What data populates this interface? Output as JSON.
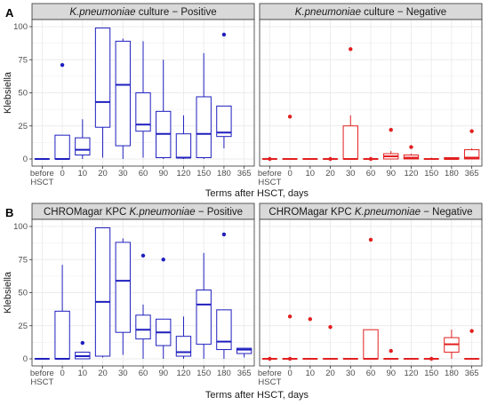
{
  "chart_data": [
    {
      "type": "box",
      "panel_label": "A",
      "ylabel": "Klebsiella",
      "xlabel": "Terms after HSCT, days",
      "ylim": [
        0,
        100
      ],
      "yticks": [
        0,
        25,
        50,
        75,
        100
      ],
      "categories": [
        "before HSCT",
        "0",
        "10",
        "20",
        "30",
        "60",
        "90",
        "120",
        "150",
        "180",
        "365"
      ],
      "category_labels": [
        [
          "before",
          "HSCT"
        ],
        [
          "0"
        ],
        [
          "10"
        ],
        [
          "20"
        ],
        [
          "30"
        ],
        [
          "60"
        ],
        [
          "90"
        ],
        [
          "120"
        ],
        [
          "150"
        ],
        [
          "180"
        ],
        [
          "365"
        ]
      ],
      "grid": true,
      "facets": [
        {
          "title_italic": "K.pneumoniae",
          "title_rest": " culture − Positive",
          "color": "#1f1fbf",
          "categories": [
            "before HSCT",
            "0",
            "10",
            "20",
            "30",
            "60",
            "90",
            "120",
            "150",
            "180"
          ],
          "boxes": [
            {
              "min": 0,
              "q1": 0,
              "median": 0,
              "q3": 0,
              "max": 0,
              "outliers": []
            },
            {
              "min": 0,
              "q1": 0,
              "median": 0,
              "q3": 18,
              "max": 18,
              "outliers": [
                71
              ]
            },
            {
              "min": 0,
              "q1": 3,
              "median": 7,
              "q3": 16,
              "max": 30,
              "outliers": []
            },
            {
              "min": 1,
              "q1": 24,
              "median": 43,
              "q3": 99,
              "max": 99,
              "outliers": []
            },
            {
              "min": 0,
              "q1": 10,
              "median": 56,
              "q3": 89,
              "max": 91,
              "outliers": []
            },
            {
              "min": 1,
              "q1": 21,
              "median": 26,
              "q3": 50,
              "max": 89,
              "outliers": []
            },
            {
              "min": 0,
              "q1": 1,
              "median": 19,
              "q3": 36,
              "max": 75,
              "outliers": []
            },
            {
              "min": 0,
              "q1": 1,
              "median": 1,
              "q3": 19,
              "max": 33,
              "outliers": []
            },
            {
              "min": 0,
              "q1": 1,
              "median": 19,
              "q3": 47,
              "max": 80,
              "outliers": []
            },
            {
              "min": 8,
              "q1": 17,
              "median": 20,
              "q3": 40,
              "max": 40,
              "outliers": [
                94
              ]
            }
          ]
        },
        {
          "title_italic": "K.pneumoniae",
          "title_rest": " culture − Negative",
          "color": "#e21f1f",
          "categories": [
            "before HSCT",
            "0",
            "10",
            "20",
            "30",
            "60",
            "90",
            "120",
            "150",
            "180",
            "365"
          ],
          "boxes": [
            {
              "min": 0,
              "q1": 0,
              "median": 0,
              "q3": 0,
              "max": 0,
              "outliers": [
                0
              ]
            },
            {
              "min": 0,
              "q1": 0,
              "median": 0,
              "q3": 0,
              "max": 0,
              "outliers": [
                32
              ]
            },
            {
              "min": 0,
              "q1": 0,
              "median": 0,
              "q3": 0,
              "max": 0,
              "outliers": []
            },
            {
              "min": 0,
              "q1": 0,
              "median": 0,
              "q3": 0,
              "max": 0,
              "outliers": [
                0
              ]
            },
            {
              "min": 0,
              "q1": 0,
              "median": 0,
              "q3": 25,
              "max": 33,
              "outliers": [
                83
              ]
            },
            {
              "min": 0,
              "q1": 0,
              "median": 0,
              "q3": 0,
              "max": 0,
              "outliers": [
                0
              ]
            },
            {
              "min": 0,
              "q1": 0,
              "median": 2,
              "q3": 4,
              "max": 6,
              "outliers": [
                22
              ]
            },
            {
              "min": 0,
              "q1": 0,
              "median": 1,
              "q3": 3,
              "max": 4,
              "outliers": [
                9
              ]
            },
            {
              "min": 0,
              "q1": 0,
              "median": 0,
              "q3": 0,
              "max": 1,
              "outliers": []
            },
            {
              "min": 0,
              "q1": 0,
              "median": 0,
              "q3": 1,
              "max": 1,
              "outliers": []
            },
            {
              "min": 0,
              "q1": 0,
              "median": 1,
              "q3": 7,
              "max": 8,
              "outliers": [
                21
              ]
            }
          ]
        }
      ]
    },
    {
      "type": "box",
      "panel_label": "B",
      "ylabel": "Klebsiella",
      "xlabel": "Terms after HSCT, days",
      "ylim": [
        0,
        100
      ],
      "yticks": [
        0,
        25,
        50,
        75,
        100
      ],
      "categories": [
        "before HSCT",
        "0",
        "10",
        "20",
        "30",
        "60",
        "90",
        "120",
        "150",
        "180",
        "365"
      ],
      "category_labels": [
        [
          "before",
          "HSCT"
        ],
        [
          "0"
        ],
        [
          "10"
        ],
        [
          "20"
        ],
        [
          "30"
        ],
        [
          "60"
        ],
        [
          "90"
        ],
        [
          "120"
        ],
        [
          "150"
        ],
        [
          "180"
        ],
        [
          "365"
        ]
      ],
      "grid": true,
      "facets": [
        {
          "title_prefix": "CHROMagar KPC ",
          "title_italic": "K.pneumoniae",
          "title_rest": " − Positive",
          "color": "#1f1fbf",
          "categories": [
            "before HSCT",
            "0",
            "10",
            "20",
            "30",
            "60",
            "90",
            "120",
            "150",
            "180",
            "365"
          ],
          "boxes": [
            {
              "min": 0,
              "q1": 0,
              "median": 0,
              "q3": 0,
              "max": 0,
              "outliers": []
            },
            {
              "min": 0,
              "q1": 0,
              "median": 0,
              "q3": 36,
              "max": 71,
              "outliers": []
            },
            {
              "min": 0,
              "q1": 0,
              "median": 2,
              "q3": 5,
              "max": 5,
              "outliers": [
                12
              ]
            },
            {
              "min": 1,
              "q1": 2,
              "median": 43,
              "q3": 99,
              "max": 99,
              "outliers": []
            },
            {
              "min": 3,
              "q1": 20,
              "median": 59,
              "q3": 88,
              "max": 91,
              "outliers": []
            },
            {
              "min": 0,
              "q1": 15,
              "median": 22,
              "q3": 33,
              "max": 41,
              "outliers": [
                78
              ]
            },
            {
              "min": 0,
              "q1": 10,
              "median": 20,
              "q3": 30,
              "max": 30,
              "outliers": [
                75
              ]
            },
            {
              "min": 0,
              "q1": 2,
              "median": 5,
              "q3": 17,
              "max": 32,
              "outliers": []
            },
            {
              "min": 0,
              "q1": 11,
              "median": 41,
              "q3": 52,
              "max": 80,
              "outliers": []
            },
            {
              "min": 0,
              "q1": 7,
              "median": 13,
              "q3": 37,
              "max": 37,
              "outliers": [
                94
              ]
            },
            {
              "min": 1,
              "q1": 4,
              "median": 7,
              "q3": 8,
              "max": 8,
              "outliers": []
            }
          ]
        },
        {
          "title_prefix": "CHROMagar KPC ",
          "title_italic": "K.pneumoniae",
          "title_rest": " − Negative",
          "color": "#e21f1f",
          "categories": [
            "before HSCT",
            "0",
            "10",
            "20",
            "30",
            "60",
            "90",
            "120",
            "150",
            "180",
            "365"
          ],
          "boxes": [
            {
              "min": 0,
              "q1": 0,
              "median": 0,
              "q3": 0,
              "max": 0,
              "outliers": [
                0
              ]
            },
            {
              "min": 0,
              "q1": 0,
              "median": 0,
              "q3": 0,
              "max": 0,
              "outliers": [
                32,
                0
              ]
            },
            {
              "min": 0,
              "q1": 0,
              "median": 0,
              "q3": 0,
              "max": 0,
              "outliers": [
                30
              ]
            },
            {
              "min": 0,
              "q1": 0,
              "median": 0,
              "q3": 0,
              "max": 0,
              "outliers": [
                24
              ]
            },
            {
              "min": 0,
              "q1": 0,
              "median": 0,
              "q3": 0,
              "max": 0,
              "outliers": []
            },
            {
              "min": 0,
              "q1": 0,
              "median": 0,
              "q3": 22,
              "max": 22,
              "outliers": [
                90
              ]
            },
            {
              "min": 0,
              "q1": 0,
              "median": 0,
              "q3": 0,
              "max": 0,
              "outliers": [
                6
              ]
            },
            {
              "min": 0,
              "q1": 0,
              "median": 0,
              "q3": 0,
              "max": 0,
              "outliers": []
            },
            {
              "min": 0,
              "q1": 0,
              "median": 0,
              "q3": 0,
              "max": 0,
              "outliers": [
                0
              ]
            },
            {
              "min": 0,
              "q1": 5,
              "median": 11,
              "q3": 16,
              "max": 22,
              "outliers": []
            },
            {
              "min": 0,
              "q1": 0,
              "median": 0,
              "q3": 0,
              "max": 0,
              "outliers": [
                21
              ]
            }
          ]
        }
      ]
    }
  ]
}
